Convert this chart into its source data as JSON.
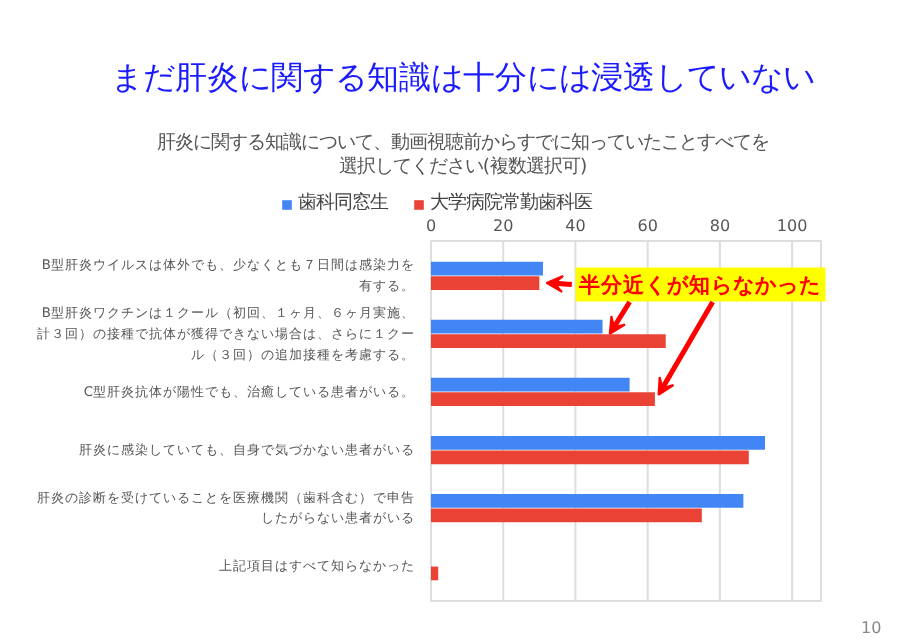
{
  "chart_data": {
    "type": "bar",
    "orientation": "horizontal",
    "title": "まだ肝炎に関する知識は十分には浸透していない",
    "subtitle": "肝炎に関する知識について、動画視聴前からすでに知っていたことすべてを選択してください(複数選択可)",
    "categories": [
      "B型肝炎ウイルスは体外でも、少なくとも７日間は感染力を有する。",
      "B型肝炎ワクチンは１クール（初回、１ヶ月、６ヶ月実施、計３回）の接種で抗体が獲得できない場合は、さらに１クール（３回）の追加接種を考慮する。",
      "C型肝炎抗体が陽性でも、治癒している患者がいる。",
      "肝炎に感染していても、自身で気づかない患者がいる",
      "肝炎の診断を受けていることを医療機関（歯科含む）で申告したがらない患者がいる",
      "上記項目はすべて知らなかった"
    ],
    "series": [
      {
        "name": "歯科同窓生",
        "color": "#4285f4",
        "values": [
          31,
          47.5,
          55,
          92.5,
          86.5,
          0
        ]
      },
      {
        "name": "大学病院常勤歯科医",
        "color": "#ea4335",
        "values": [
          30,
          65,
          62,
          88,
          75,
          2
        ]
      }
    ],
    "xlim": [
      0,
      108
    ],
    "xticks": [
      0,
      20,
      40,
      60,
      80,
      100
    ],
    "grid": "x",
    "legend": "top",
    "annotations": [
      {
        "text": "半分近くが知らなかった",
        "x": 62,
        "y": "C型肝炎抗体が陽性でも、治癒している患者がいる。"
      },
      "10"
    ]
  }
}
